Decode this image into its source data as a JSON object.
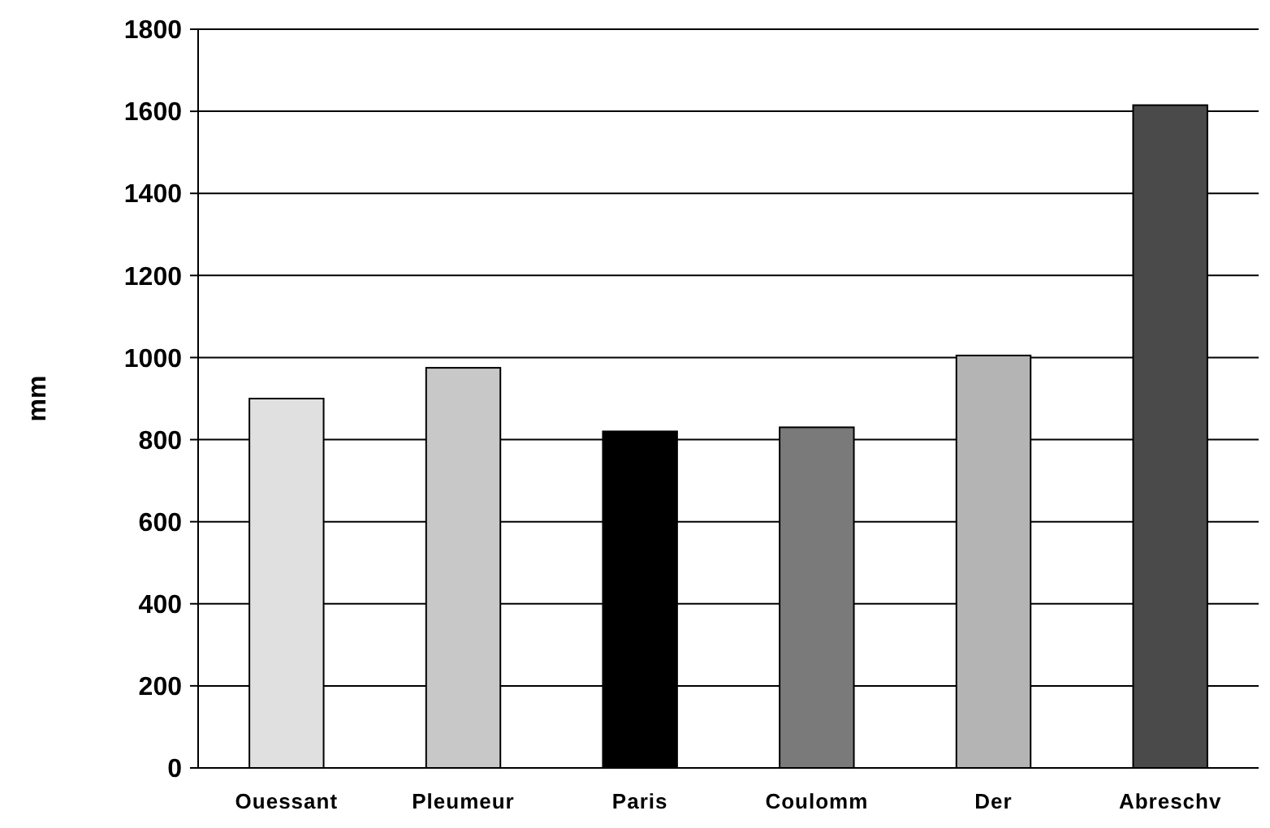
{
  "chart_data": {
    "type": "bar",
    "ylabel": "mm",
    "categories": [
      "Ouessant",
      "Pleumeur",
      "Paris",
      "Coulomm",
      "Der",
      "Abreschv"
    ],
    "values": [
      900,
      975,
      820,
      830,
      1005,
      1615
    ],
    "colors": [
      "#e0e0e0",
      "#c8c8c8",
      "#000000",
      "#7a7a7a",
      "#b4b4b4",
      "#4a4a4a"
    ],
    "ylim": [
      0,
      1800
    ],
    "yticks": [
      0,
      200,
      400,
      600,
      800,
      1000,
      1200,
      1400,
      1600,
      1800
    ],
    "grid": "y"
  }
}
